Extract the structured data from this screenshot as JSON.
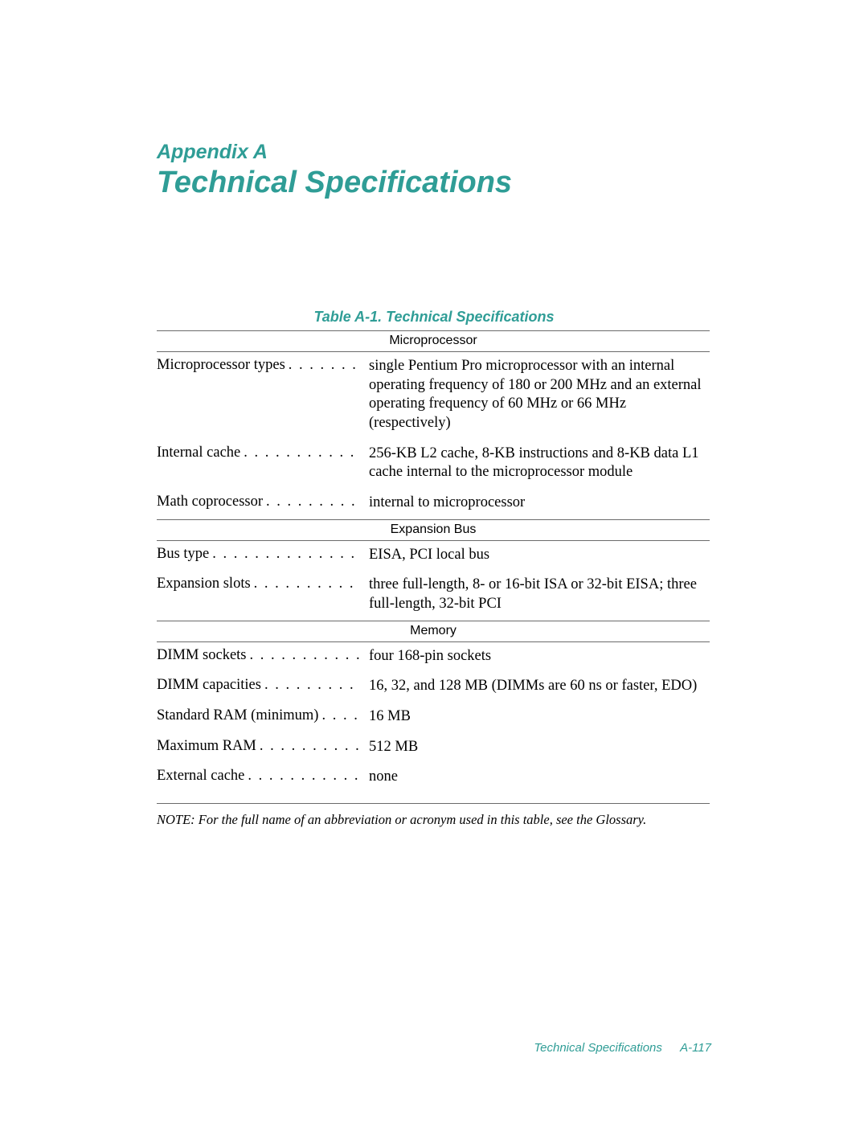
{
  "colors": {
    "accent": "#2f9d96",
    "text": "#000000",
    "rule": "#6b6b6b",
    "background": "#ffffff"
  },
  "typography": {
    "heading_family": "Helvetica, Arial, sans-serif",
    "body_family": "Times New Roman, Times, serif",
    "appendix_label_size_pt": 19,
    "title_size_pt": 29,
    "caption_size_pt": 13,
    "body_size_pt": 14,
    "section_header_size_pt": 12,
    "note_size_pt": 12,
    "footer_size_pt": 11
  },
  "header": {
    "appendix_label": "Appendix A",
    "title": "Technical Specifications"
  },
  "table": {
    "caption": "Table A-1.  Technical Specifications",
    "sections": [
      {
        "name": "Microprocessor",
        "rows": [
          {
            "label": "Microprocessor types",
            "value": "single Pentium Pro microprocessor with an internal operating frequency of 180 or 200 MHz and an external operating frequency of 60 MHz or 66 MHz (respectively)"
          },
          {
            "label": "Internal cache",
            "value": "256-KB L2 cache, 8-KB instructions and 8-KB data L1 cache internal to the microprocessor module"
          },
          {
            "label": "Math coprocessor",
            "value": "internal to microprocessor"
          }
        ]
      },
      {
        "name": "Expansion Bus",
        "rows": [
          {
            "label": "Bus type",
            "value": "EISA, PCI local bus"
          },
          {
            "label": "Expansion slots",
            "value": "three full-length, 8- or 16-bit ISA or 32-bit EISA; three full-length, 32-bit PCI"
          }
        ]
      },
      {
        "name": "Memory",
        "rows": [
          {
            "label": "DIMM sockets",
            "value": "four 168-pin sockets"
          },
          {
            "label": "DIMM capacities",
            "value": "16, 32, and 128 MB (DIMMs are 60 ns or faster, EDO)"
          },
          {
            "label": "Standard RAM (minimum)",
            "value": "16 MB"
          },
          {
            "label": "Maximum RAM",
            "value": "512 MB"
          },
          {
            "label": "External cache",
            "value": "none"
          }
        ]
      }
    ],
    "note": "NOTE: For the full name of an abbreviation or acronym used in this table, see the Glossary."
  },
  "footer": {
    "text": "Technical Specifications",
    "page": "A-117"
  }
}
